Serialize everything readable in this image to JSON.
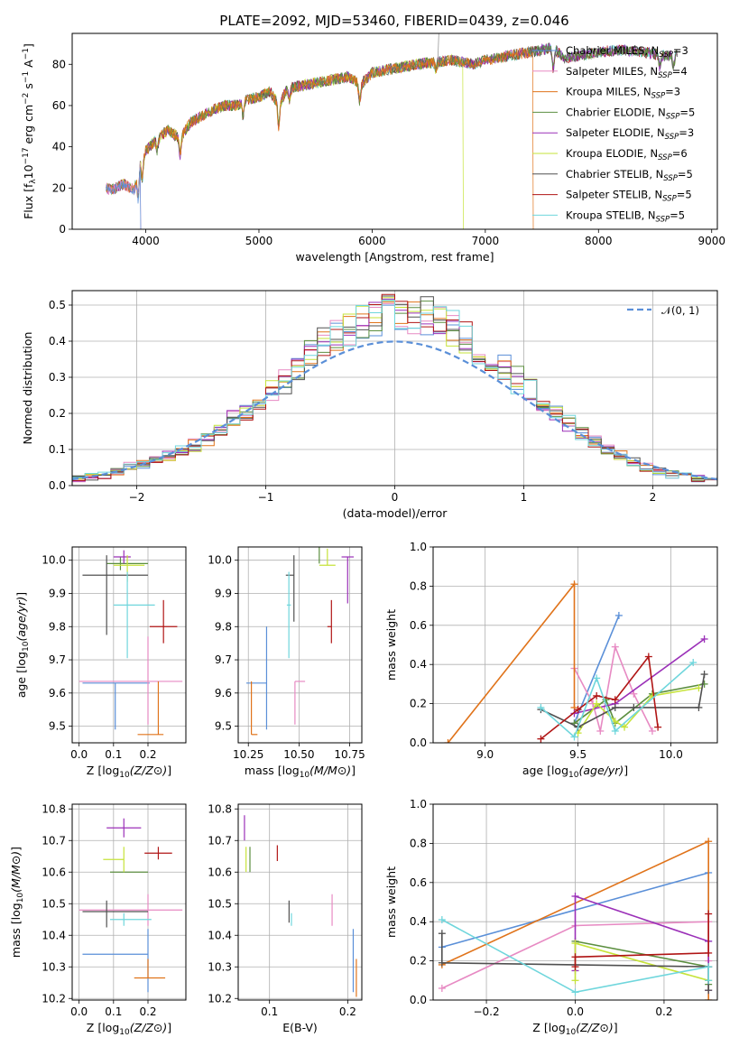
{
  "title": "PLATE=2092, MJD=53460, FIBERID=0439, z=0.046",
  "colors": [
    "#5a8fd8",
    "#e78ac3",
    "#e0731a",
    "#5c8f40",
    "#9b30b8",
    "#c6e33a",
    "#505050",
    "#b01515",
    "#6fd6dc"
  ],
  "chart_data": [
    {
      "id": "spectrum",
      "type": "line",
      "xlabel": "wavelength [Angstrom, rest frame]",
      "ylabel_parts": [
        "Flux [f",
        "λ",
        "10",
        "−17",
        " erg cm",
        "−2",
        " s",
        "−1",
        " A",
        "−1",
        "]"
      ],
      "xlim": [
        3350,
        9050
      ],
      "ylim": [
        0,
        95
      ],
      "xticks": [
        4000,
        5000,
        6000,
        7000,
        8000,
        9000
      ],
      "yticks": [
        0,
        20,
        40,
        60,
        80
      ],
      "continuum": [
        [
          3650,
          20
        ],
        [
          3700,
          19
        ],
        [
          3800,
          22
        ],
        [
          3900,
          19
        ],
        [
          3950,
          34
        ],
        [
          4000,
          38
        ],
        [
          4100,
          44
        ],
        [
          4200,
          48
        ],
        [
          4300,
          44
        ],
        [
          4400,
          52
        ],
        [
          4500,
          55
        ],
        [
          4600,
          58
        ],
        [
          4700,
          60
        ],
        [
          4800,
          60
        ],
        [
          4900,
          63
        ],
        [
          5000,
          64
        ],
        [
          5100,
          67
        ],
        [
          5175,
          60
        ],
        [
          5250,
          68
        ],
        [
          5400,
          70
        ],
        [
          5600,
          72
        ],
        [
          5800,
          74
        ],
        [
          5900,
          70
        ],
        [
          6000,
          76
        ],
        [
          6200,
          78
        ],
        [
          6400,
          80
        ],
        [
          6563,
          81
        ],
        [
          6700,
          82
        ],
        [
          6900,
          80
        ],
        [
          7000,
          82
        ],
        [
          7200,
          84
        ],
        [
          7400,
          86
        ],
        [
          7600,
          88
        ],
        [
          7700,
          83
        ],
        [
          7800,
          84
        ],
        [
          8000,
          86
        ],
        [
          8200,
          87
        ],
        [
          8400,
          86
        ],
        [
          8600,
          84
        ],
        [
          8700,
          85
        ]
      ],
      "series": [
        {
          "legend": "Chabrier MILES, N",
          "sub": "SSP",
          "eq": "=3"
        },
        {
          "legend": "Salpeter MILES, N",
          "sub": "SSP",
          "eq": "=4"
        },
        {
          "legend": "Kroupa MILES, N",
          "sub": "SSP",
          "eq": "=3"
        },
        {
          "legend": "Chabrier ELODIE, N",
          "sub": "SSP",
          "eq": "=5"
        },
        {
          "legend": "Salpeter ELODIE, N",
          "sub": "SSP",
          "eq": "=3"
        },
        {
          "legend": "Kroupa ELODIE, N",
          "sub": "SSP",
          "eq": "=6"
        },
        {
          "legend": "Chabrier STELIB, N",
          "sub": "SSP",
          "eq": "=5"
        },
        {
          "legend": "Salpeter STELIB, N",
          "sub": "SSP",
          "eq": "=5"
        },
        {
          "legend": "Kroupa STELIB, N",
          "sub": "SSP",
          "eq": "=5"
        }
      ],
      "cutoffs": [
        [
          3650,
          3950
        ],
        [
          3650,
          3950
        ],
        [
          3650,
          7420
        ],
        [
          3650,
          8700
        ],
        [
          3650,
          8700
        ],
        [
          3650,
          6800
        ],
        [
          3650,
          8700
        ],
        [
          3650,
          8700
        ],
        [
          3650,
          8700
        ]
      ]
    },
    {
      "id": "residuals",
      "type": "histogram",
      "xlabel": "(data-model)/error",
      "ylabel": "Normed distribution",
      "xlim": [
        -2.5,
        2.5
      ],
      "ylim": [
        0,
        0.54
      ],
      "xticks": [
        -2,
        -1,
        0,
        1,
        2
      ],
      "yticks": [
        0.0,
        0.1,
        0.2,
        0.3,
        0.4,
        0.5
      ],
      "legend": "𝒩(0, 1)",
      "bin_width": 0.1,
      "base_hist": [
        0.02,
        0.025,
        0.03,
        0.04,
        0.05,
        0.06,
        0.07,
        0.08,
        0.095,
        0.11,
        0.13,
        0.15,
        0.18,
        0.2,
        0.23,
        0.26,
        0.29,
        0.32,
        0.36,
        0.39,
        0.41,
        0.43,
        0.45,
        0.46,
        0.47,
        0.47,
        0.47,
        0.46,
        0.45,
        0.43,
        0.41,
        0.38,
        0.35,
        0.32,
        0.29,
        0.26,
        0.23,
        0.2,
        0.17,
        0.14,
        0.12,
        0.1,
        0.08,
        0.065,
        0.05,
        0.04,
        0.03,
        0.025,
        0.02,
        0.02
      ]
    },
    {
      "id": "age_vs_Z",
      "type": "errorbar",
      "xlabel": "Z [log10(Z/Z⊙)]",
      "ylabel": "age  [log10(age/yr)]",
      "xlim": [
        -0.02,
        0.31
      ],
      "ylim": [
        9.45,
        10.04
      ],
      "xticks": [
        0.0,
        0.1,
        0.2
      ],
      "yticks": [
        9.5,
        9.6,
        9.7,
        9.8,
        9.9,
        10.0
      ],
      "points": [
        {
          "x": 0.105,
          "xerr": [
            0.095,
            0.1
          ],
          "y": 9.63,
          "yerr": [
            0.14,
            0.0
          ]
        },
        {
          "x": 0.2,
          "xerr": [
            0.2,
            0.1
          ],
          "y": 9.635,
          "yerr": [
            0.13,
            0.135
          ]
        },
        {
          "x": 0.23,
          "xerr": [
            0.06,
            0.015
          ],
          "y": 9.475,
          "yerr": [
            0.0,
            0.16
          ]
        },
        {
          "x": 0.12,
          "xerr": [
            0.04,
            0.08
          ],
          "y": 9.99,
          "yerr": [
            0.02,
            0.02
          ]
        },
        {
          "x": 0.13,
          "xerr": [
            0.03,
            0.02
          ],
          "y": 10.01,
          "yerr": [
            0.02,
            0.02
          ]
        },
        {
          "x": 0.14,
          "xerr": [
            0.04,
            0.05
          ],
          "y": 9.985,
          "yerr": [
            0.05,
            0.03
          ]
        },
        {
          "x": 0.08,
          "xerr": [
            0.07,
            0.12
          ],
          "y": 9.955,
          "yerr": [
            0.18,
            0.06
          ]
        },
        {
          "x": 0.245,
          "xerr": [
            0.04,
            0.04
          ],
          "y": 9.8,
          "yerr": [
            0.05,
            0.08
          ]
        },
        {
          "x": 0.14,
          "xerr": [
            0.04,
            0.08
          ],
          "y": 9.865,
          "yerr": [
            0.16,
            0.1
          ]
        }
      ]
    },
    {
      "id": "age_vs_mass",
      "type": "errorbar",
      "xlabel": "mass [log10(M/M⊙)]",
      "ylabel": "",
      "xlim": [
        10.2,
        10.81
      ],
      "ylim": [
        9.45,
        10.04
      ],
      "xticks": [
        10.25,
        10.5,
        10.75
      ],
      "yticks": [
        9.5,
        9.6,
        9.7,
        9.8,
        9.9,
        10.0
      ],
      "points": [
        {
          "x": 10.34,
          "xerr": [
            0.1,
            0.0
          ],
          "y": 9.63,
          "yerr": [
            0.14,
            0.17
          ]
        },
        {
          "x": 10.48,
          "xerr": [
            0.0,
            0.05
          ],
          "y": 9.635,
          "yerr": [
            0.13,
            0.0
          ]
        },
        {
          "x": 10.265,
          "xerr": [
            0.0,
            0.03
          ],
          "y": 9.475,
          "yerr": [
            0.0,
            0.16
          ]
        },
        {
          "x": 10.6,
          "xerr": [
            0.0,
            0.0
          ],
          "y": 9.99,
          "yerr": [
            0.0,
            0.05
          ]
        },
        {
          "x": 10.74,
          "xerr": [
            0.03,
            0.03
          ],
          "y": 10.01,
          "yerr": [
            0.14,
            0.0
          ]
        },
        {
          "x": 10.64,
          "xerr": [
            0.04,
            0.04
          ],
          "y": 9.985,
          "yerr": [
            0.0,
            0.05
          ]
        },
        {
          "x": 10.475,
          "xerr": [
            0.04,
            0.0
          ],
          "y": 9.955,
          "yerr": [
            0.14,
            0.06
          ]
        },
        {
          "x": 10.66,
          "xerr": [
            0.02,
            0.0
          ],
          "y": 9.8,
          "yerr": [
            0.05,
            0.08
          ]
        },
        {
          "x": 10.45,
          "xerr": [
            0.01,
            0.01
          ],
          "y": 9.865,
          "yerr": [
            0.16,
            0.1
          ]
        }
      ]
    },
    {
      "id": "weights_vs_age",
      "type": "line",
      "xlabel": "age  [log10(age/yr)]",
      "ylabel": "mass weight",
      "xlim": [
        8.72,
        10.25
      ],
      "ylim": [
        0,
        1.0
      ],
      "xticks": [
        9.0,
        9.5,
        10.0
      ],
      "yticks": [
        0.0,
        0.2,
        0.4,
        0.6,
        0.8,
        1.0
      ],
      "series": [
        {
          "x": [
            9.48,
            9.72
          ],
          "y": [
            0.1,
            0.65
          ]
        },
        {
          "x": [
            9.48,
            9.58,
            9.62,
            9.7,
            9.8,
            9.9
          ],
          "y": [
            0.38,
            0.2,
            0.06,
            0.49,
            0.25,
            0.06
          ]
        },
        {
          "x": [
            8.8,
            9.48,
            9.48
          ],
          "y": [
            0.0,
            0.81,
            0.18
          ]
        },
        {
          "x": [
            9.48,
            9.65,
            9.7,
            9.9,
            10.18
          ],
          "y": [
            0.1,
            0.22,
            0.1,
            0.25,
            0.3
          ]
        },
        {
          "x": [
            9.48,
            9.7,
            10.18
          ],
          "y": [
            0.15,
            0.2,
            0.53
          ]
        },
        {
          "x": [
            9.5,
            9.6,
            9.7,
            9.75,
            9.9,
            10.15
          ],
          "y": [
            0.05,
            0.2,
            0.11,
            0.08,
            0.24,
            0.28
          ]
        },
        {
          "x": [
            9.3,
            9.5,
            9.7,
            9.8,
            10.15,
            10.18
          ],
          "y": [
            0.17,
            0.08,
            0.18,
            0.18,
            0.18,
            0.35
          ]
        },
        {
          "x": [
            9.3,
            9.5,
            9.6,
            9.7,
            9.88,
            9.93
          ],
          "y": [
            0.02,
            0.17,
            0.24,
            0.22,
            0.44,
            0.08
          ]
        },
        {
          "x": [
            9.3,
            9.48,
            9.6,
            9.7,
            10.12
          ],
          "y": [
            0.18,
            0.03,
            0.33,
            0.06,
            0.41
          ]
        }
      ]
    },
    {
      "id": "mass_vs_Z",
      "type": "errorbar",
      "xlabel": "Z [log10(Z/Z⊙)]",
      "ylabel": "mass [log10(M/M⊙)]",
      "xlim": [
        -0.02,
        0.31
      ],
      "ylim": [
        10.195,
        10.815
      ],
      "xticks": [
        0.0,
        0.1,
        0.2
      ],
      "yticks": [
        10.2,
        10.3,
        10.4,
        10.5,
        10.6,
        10.7,
        10.8
      ],
      "points": [
        {
          "x": 0.2,
          "xerr": [
            0.19,
            0.0
          ],
          "y": 10.34,
          "yerr": [
            0.12,
            0.08
          ]
        },
        {
          "x": 0.2,
          "xerr": [
            0.2,
            0.1
          ],
          "y": 10.48,
          "yerr": [
            0.05,
            0.05
          ]
        },
        {
          "x": 0.2,
          "xerr": [
            0.04,
            0.05
          ],
          "y": 10.265,
          "yerr": [
            0.0,
            0.06
          ]
        },
        {
          "x": 0.13,
          "xerr": [
            0.04,
            0.07
          ],
          "y": 10.6,
          "yerr": [
            0.0,
            0.0
          ]
        },
        {
          "x": 0.13,
          "xerr": [
            0.05,
            0.05
          ],
          "y": 10.74,
          "yerr": [
            0.03,
            0.03
          ]
        },
        {
          "x": 0.13,
          "xerr": [
            0.06,
            0.0
          ],
          "y": 10.64,
          "yerr": [
            0.04,
            0.04
          ]
        },
        {
          "x": 0.08,
          "xerr": [
            0.07,
            0.12
          ],
          "y": 10.475,
          "yerr": [
            0.05,
            0.035
          ]
        },
        {
          "x": 0.23,
          "xerr": [
            0.04,
            0.04
          ],
          "y": 10.66,
          "yerr": [
            0.02,
            0.02
          ]
        },
        {
          "x": 0.13,
          "xerr": [
            0.04,
            0.08
          ],
          "y": 10.45,
          "yerr": [
            0.02,
            0.02
          ]
        }
      ]
    },
    {
      "id": "mass_vs_ebv",
      "type": "errorbar",
      "xlabel": "E(B-V)",
      "ylabel": "",
      "xlim": [
        0.06,
        0.218
      ],
      "ylim": [
        10.195,
        10.815
      ],
      "xticks": [
        0.1,
        0.2
      ],
      "yticks": [
        10.2,
        10.3,
        10.4,
        10.5,
        10.6,
        10.7,
        10.8
      ],
      "points": [
        {
          "x": 0.207,
          "xerr": [
            0.0,
            0.0
          ],
          "y": 10.34,
          "yerr": [
            0.12,
            0.08
          ]
        },
        {
          "x": 0.18,
          "xerr": [
            0.0,
            0.0
          ],
          "y": 10.48,
          "yerr": [
            0.05,
            0.05
          ]
        },
        {
          "x": 0.211,
          "xerr": [
            0.0,
            0.0
          ],
          "y": 10.265,
          "yerr": [
            0.06,
            0.06
          ]
        },
        {
          "x": 0.075,
          "xerr": [
            0.0,
            0.0
          ],
          "y": 10.64,
          "yerr": [
            0.04,
            0.04
          ]
        },
        {
          "x": 0.068,
          "xerr": [
            0.0,
            0.0
          ],
          "y": 10.74,
          "yerr": [
            0.04,
            0.04
          ]
        },
        {
          "x": 0.07,
          "xerr": [
            0.0,
            0.0
          ],
          "y": 10.64,
          "yerr": [
            0.04,
            0.04
          ]
        },
        {
          "x": 0.125,
          "xerr": [
            0.0,
            0.0
          ],
          "y": 10.475,
          "yerr": [
            0.035,
            0.035
          ]
        },
        {
          "x": 0.11,
          "xerr": [
            0.0,
            0.0
          ],
          "y": 10.66,
          "yerr": [
            0.025,
            0.025
          ]
        },
        {
          "x": 0.128,
          "xerr": [
            0.0,
            0.0
          ],
          "y": 10.45,
          "yerr": [
            0.02,
            0.02
          ]
        }
      ]
    },
    {
      "id": "weights_vs_Z",
      "type": "line",
      "xlabel": "Z [log10(Z/Z⊙)]",
      "ylabel": "mass weight",
      "xlim": [
        -0.32,
        0.32
      ],
      "ylim": [
        0,
        1.0
      ],
      "xticks": [
        -0.2,
        0.0,
        0.2
      ],
      "yticks": [
        0.0,
        0.2,
        0.4,
        0.6,
        0.8,
        1.0
      ],
      "series": [
        {
          "x": [
            -0.3,
            0.3,
            0.3
          ],
          "y": [
            0.27,
            0.65,
            0.3
          ]
        },
        {
          "x": [
            -0.3,
            0.0,
            0.3,
            0.3
          ],
          "y": [
            0.06,
            0.38,
            0.4,
            0.2
          ]
        },
        {
          "x": [
            -0.3,
            0.3,
            0.3
          ],
          "y": [
            0.18,
            0.81,
            0.0
          ]
        },
        {
          "x": [
            0.0,
            0.3,
            0.3
          ],
          "y": [
            0.3,
            0.17,
            0.08
          ]
        },
        {
          "x": [
            0.0,
            0.0,
            0.3,
            0.3
          ],
          "y": [
            0.15,
            0.53,
            0.3,
            0.05
          ]
        },
        {
          "x": [
            0.0,
            0.0,
            0.3
          ],
          "y": [
            0.1,
            0.29,
            0.1
          ]
        },
        {
          "x": [
            -0.3,
            -0.3,
            0.3,
            0.3
          ],
          "y": [
            0.34,
            0.19,
            0.17,
            0.05
          ]
        },
        {
          "x": [
            0.0,
            0.0,
            0.3,
            0.3
          ],
          "y": [
            0.17,
            0.22,
            0.24,
            0.44
          ]
        },
        {
          "x": [
            -0.3,
            0.0,
            0.3,
            0.3
          ],
          "y": [
            0.41,
            0.04,
            0.17,
            0.1
          ]
        }
      ]
    }
  ]
}
